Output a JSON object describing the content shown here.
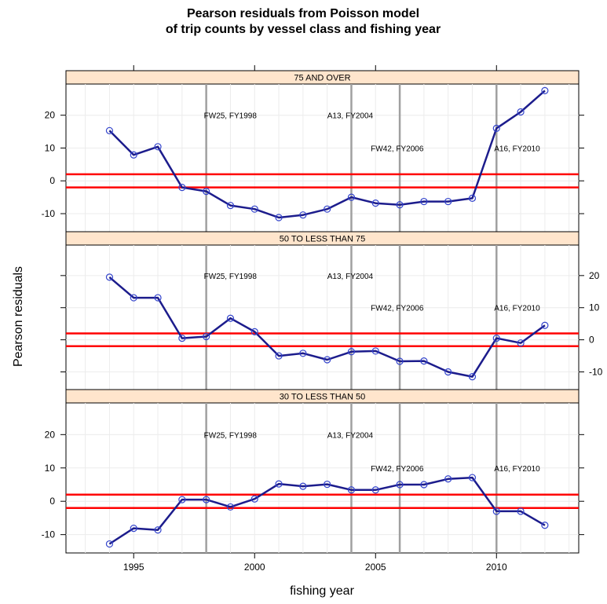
{
  "chart_data": {
    "type": "line",
    "title_lines": [
      "Pearson residuals from Poisson model",
      "of trip counts by vessel class and fishing year"
    ],
    "xlabel": "fishing year",
    "ylabel": "Pearson residuals",
    "xlim": [
      1992.2,
      2013.4
    ],
    "ylim": [
      -15.5,
      29.5
    ],
    "x_ticks": [
      1995,
      2000,
      2005,
      2010
    ],
    "y_ticks": [
      -10,
      0,
      10,
      20
    ],
    "reference_lines_y": [
      2,
      -2
    ],
    "reference_line_color": "#ff0000",
    "series_color": "#1c1c8c",
    "marker_color": "#3344cc",
    "vline_color": "#a0a0a0",
    "grid": true,
    "vlines": [
      1998,
      2004,
      2006,
      2010
    ],
    "annotations": [
      {
        "text": "FW25, FY1998",
        "x": 1998,
        "y": 20
      },
      {
        "text": "A13, FY2004",
        "x": 2003.1,
        "y": 20
      },
      {
        "text": "FW42, FY2006",
        "x": 2004.9,
        "y": 10
      },
      {
        "text": "A16, FY2010",
        "x": 2010,
        "y": 10
      }
    ],
    "x": [
      1994,
      1995,
      1996,
      1997,
      1998,
      1999,
      2000,
      2001,
      2002,
      2003,
      2004,
      2005,
      2006,
      2007,
      2008,
      2009,
      2010,
      2011,
      2012
    ],
    "panels": [
      {
        "name": "75 AND OVER",
        "values": [
          15.3,
          7.9,
          10.4,
          -2,
          -3.2,
          -7.5,
          -8.6,
          -11.2,
          -10.4,
          -8.6,
          -5,
          -6.8,
          -7.3,
          -6.3,
          -6.3,
          -5.3,
          16,
          21,
          27.5
        ]
      },
      {
        "name": "50 TO LESS THAN 75",
        "values": [
          19.5,
          13.1,
          13.1,
          0.5,
          1,
          6.7,
          2.5,
          -5,
          -4.2,
          -6.2,
          -3.7,
          -3.5,
          -6.7,
          -6.6,
          -10,
          -11.5,
          0.5,
          -1,
          4.5
        ]
      },
      {
        "name": "30 TO LESS THAN 50",
        "values": [
          -12.8,
          -8.1,
          -8.6,
          0.5,
          0.5,
          -1.7,
          0.7,
          5.2,
          4.5,
          5.1,
          3.4,
          3.4,
          5,
          5,
          6.7,
          7.1,
          -3,
          -3,
          -7.2
        ]
      }
    ]
  }
}
